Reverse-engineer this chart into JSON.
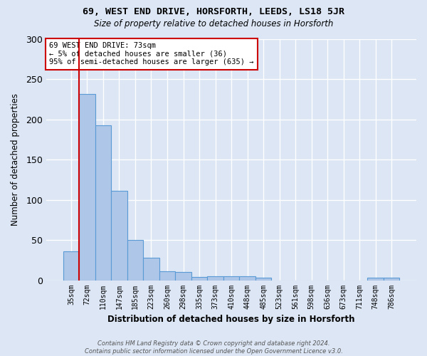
{
  "title": "69, WEST END DRIVE, HORSFORTH, LEEDS, LS18 5JR",
  "subtitle": "Size of property relative to detached houses in Horsforth",
  "xlabel": "Distribution of detached houses by size in Horsforth",
  "ylabel": "Number of detached properties",
  "categories": [
    "35sqm",
    "72sqm",
    "110sqm",
    "147sqm",
    "185sqm",
    "223sqm",
    "260sqm",
    "298sqm",
    "335sqm",
    "373sqm",
    "410sqm",
    "448sqm",
    "485sqm",
    "523sqm",
    "561sqm",
    "598sqm",
    "636sqm",
    "673sqm",
    "711sqm",
    "748sqm",
    "786sqm"
  ],
  "values": [
    36,
    232,
    193,
    111,
    50,
    28,
    11,
    10,
    4,
    5,
    5,
    5,
    3,
    0,
    0,
    0,
    0,
    0,
    0,
    3,
    3
  ],
  "bar_color": "#aec6e8",
  "bar_edgecolor": "#5b9bd5",
  "redline_index": 1,
  "annotation_line1": "69 WEST END DRIVE: 73sqm",
  "annotation_line2": "← 5% of detached houses are smaller (36)",
  "annotation_line3": "95% of semi-detached houses are larger (635) →",
  "redline_color": "#cc0000",
  "background_color": "#dce6f5",
  "bar_bg_color": "#dce6f5",
  "grid_color": "#ffffff",
  "ylim": [
    0,
    300
  ],
  "yticks": [
    0,
    50,
    100,
    150,
    200,
    250,
    300
  ],
  "footer_line1": "Contains HM Land Registry data © Crown copyright and database right 2024.",
  "footer_line2": "Contains public sector information licensed under the Open Government Licence v3.0."
}
